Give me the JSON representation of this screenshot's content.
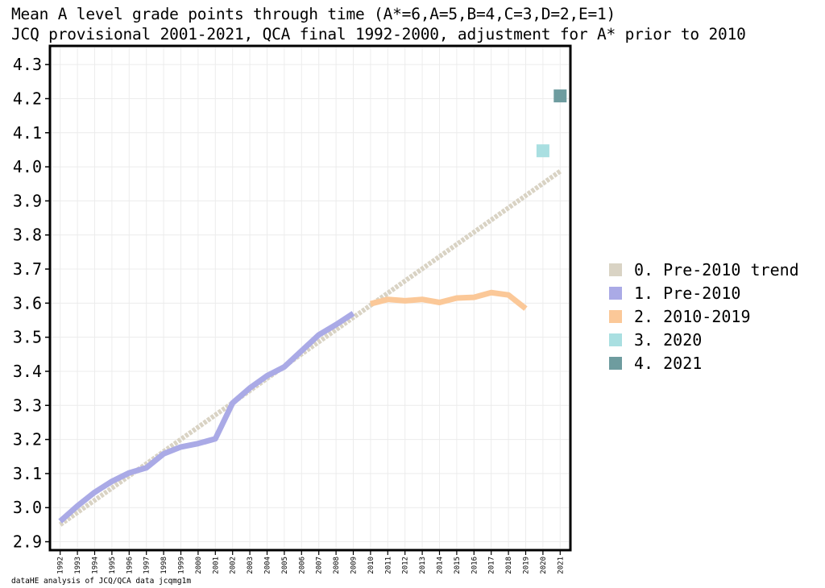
{
  "title": "Mean A level grade points through time (A*=6,A=5,B=4,C=3,D=2,E=1)",
  "subtitle": "JCQ provisional 2001-2021, QCA final 1992-2000, adjustment for A* prior to 2010",
  "caption": "dataHE analysis of JCQ/QCA data jcqmg1m",
  "chart_data": {
    "type": "line",
    "title": "Mean A level grade points through time (A*=6,A=5,B=4,C=3,D=2,E=1)",
    "subtitle": "JCQ provisional 2001-2021, QCA final 1992-2000, adjustment for A* prior to 2010",
    "xlabel": "",
    "ylabel": "",
    "ylim": [
      2.88,
      4.35
    ],
    "xlim": [
      1991.5,
      2021.5
    ],
    "x_ticks": [
      "1992",
      "1993",
      "1994",
      "1995",
      "1996",
      "1997",
      "1998",
      "1999",
      "2000",
      "2001",
      "2002",
      "2003",
      "2004",
      "2005",
      "2006",
      "2007",
      "2008",
      "2009",
      "2010",
      "2011",
      "2012",
      "2013",
      "2014",
      "2015",
      "2016",
      "2017",
      "2018",
      "2019",
      "2020",
      "2021"
    ],
    "y_ticks": [
      "2.9",
      "3.0",
      "3.1",
      "3.2",
      "3.3",
      "3.4",
      "3.5",
      "3.6",
      "3.7",
      "3.8",
      "3.9",
      "4.0",
      "4.1",
      "4.2",
      "4.3"
    ],
    "grid": true,
    "legend_position": "right",
    "series": [
      {
        "name": "0. Pre-2010 trend",
        "color": "#d9d3c4",
        "style": "dotted-line",
        "points": [
          [
            1992,
            2.95
          ],
          [
            2021,
            3.987
          ]
        ]
      },
      {
        "name": "1. Pre-2010",
        "color": "#aaaae6",
        "style": "line",
        "points": [
          [
            1992,
            2.96
          ],
          [
            1993,
            3.005
          ],
          [
            1994,
            3.045
          ],
          [
            1995,
            3.077
          ],
          [
            1996,
            3.102
          ],
          [
            1997,
            3.117
          ],
          [
            1998,
            3.158
          ],
          [
            1999,
            3.178
          ],
          [
            2000,
            3.188
          ],
          [
            2001,
            3.202
          ],
          [
            2002,
            3.307
          ],
          [
            2003,
            3.351
          ],
          [
            2004,
            3.387
          ],
          [
            2005,
            3.413
          ],
          [
            2006,
            3.46
          ],
          [
            2007,
            3.507
          ],
          [
            2008,
            3.537
          ],
          [
            2009,
            3.57
          ]
        ]
      },
      {
        "name": "2. 2010-2019",
        "color": "#fbc898",
        "style": "line",
        "points": [
          [
            2010,
            3.598
          ],
          [
            2011,
            3.611
          ],
          [
            2012,
            3.607
          ],
          [
            2013,
            3.611
          ],
          [
            2014,
            3.602
          ],
          [
            2015,
            3.615
          ],
          [
            2016,
            3.617
          ],
          [
            2017,
            3.631
          ],
          [
            2018,
            3.624
          ],
          [
            2019,
            3.584
          ]
        ]
      },
      {
        "name": "3. 2020",
        "color": "#a9dfe1",
        "style": "marker",
        "points": [
          [
            2020,
            4.047
          ]
        ]
      },
      {
        "name": "4. 2021",
        "color": "#6e9c9f",
        "style": "marker",
        "points": [
          [
            2021,
            4.208
          ]
        ]
      }
    ]
  }
}
